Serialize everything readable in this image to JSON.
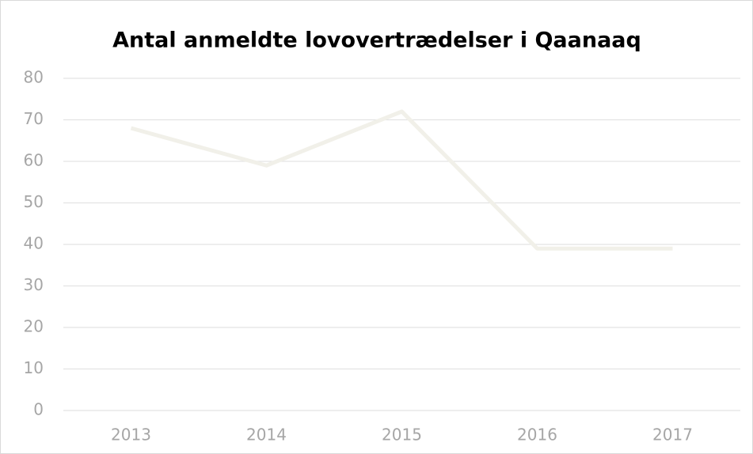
{
  "chart_data": {
    "type": "line",
    "title": "Antal anmeldte lovovertrædelser i Qaanaaq",
    "categories": [
      "2013",
      "2014",
      "2015",
      "2016",
      "2017"
    ],
    "values": [
      68,
      59,
      72,
      39,
      39
    ],
    "color": "#f1f0e9",
    "ylim": [
      0,
      80
    ],
    "yticks": [
      0,
      10,
      20,
      30,
      40,
      50,
      60,
      70,
      80
    ],
    "grid": true
  }
}
